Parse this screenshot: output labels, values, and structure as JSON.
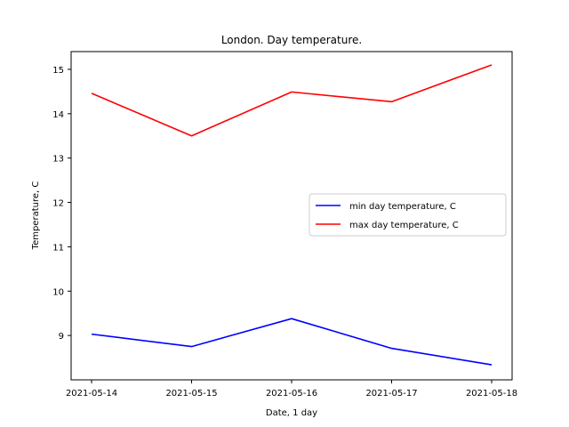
{
  "chart_data": {
    "type": "line",
    "title": "London. Day temperature.",
    "xlabel": "Date, 1 day",
    "ylabel": "Temperature, C",
    "categories": [
      "2021-05-14",
      "2021-05-15",
      "2021-05-16",
      "2021-05-17",
      "2021-05-18"
    ],
    "yticks": [
      9,
      10,
      11,
      12,
      13,
      14,
      15
    ],
    "ylim": [
      8.0,
      15.4
    ],
    "grid": false,
    "legend_position": "center-right",
    "series": [
      {
        "name": "min day temperature, C",
        "color": "#0000ff",
        "values": [
          9.03,
          8.75,
          9.38,
          8.71,
          8.34
        ]
      },
      {
        "name": "max day temperature, C",
        "color": "#ff0000",
        "values": [
          14.46,
          13.5,
          14.49,
          14.27,
          15.1
        ]
      }
    ]
  }
}
